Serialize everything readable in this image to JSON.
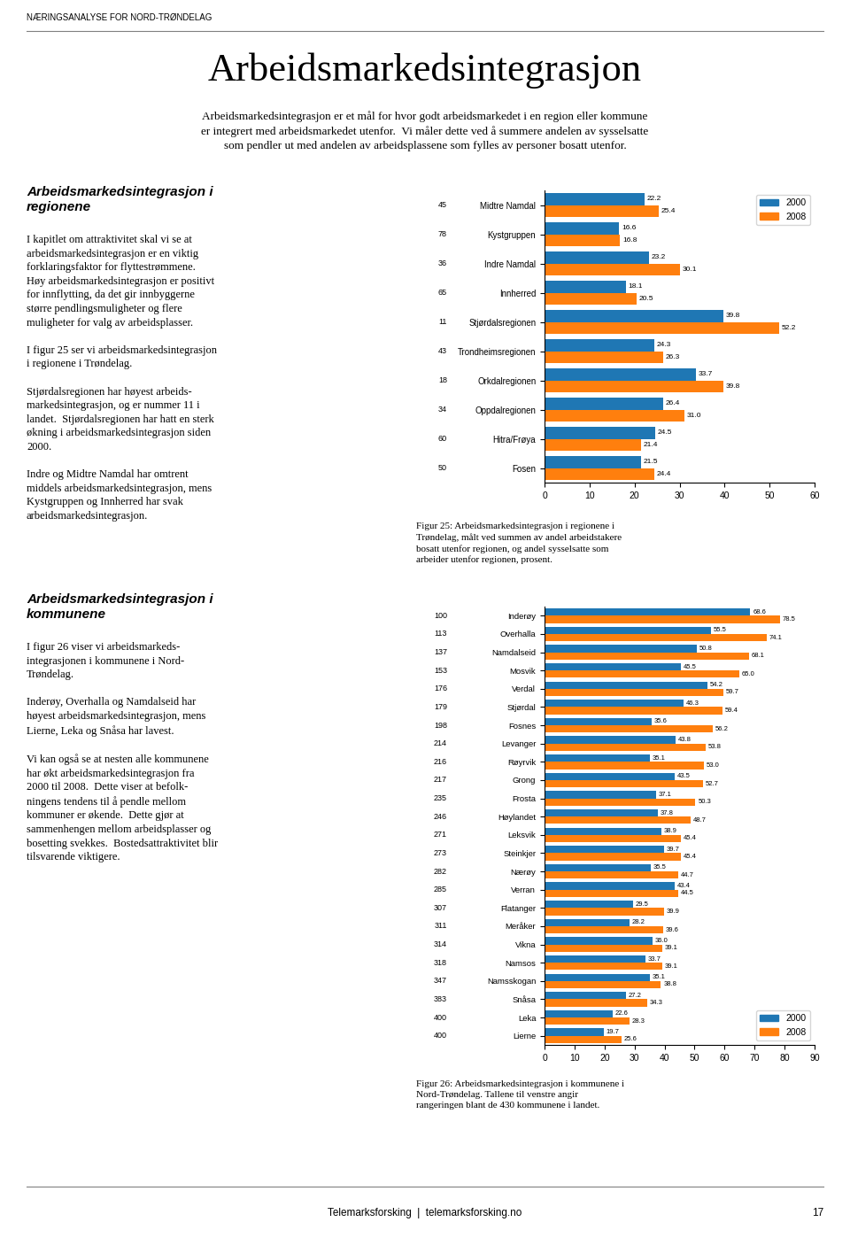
{
  "header": "NÆRINGSANALYSE FOR NORD-TRØNDELAG",
  "title": "Arbeidsmarkedsintegrasjon",
  "subtitle": "Arbeidsmarkedsintegrasjon er et mål for hvor godt arbeidsmarkedet i en region eller kommune\ner integrert med arbeidsmarkedet utenfor.  Vi måler dette ved å summere andelen av sysselsatte\nsom pendler ut med andelen av arbeidsplassene som fylles av personer bosatt utenfor.",
  "sections": [
    {
      "title": "Arbeidsmarkedsintegrasjon i\nregionene",
      "text": "I kapitlet om attraktivitet skal vi se at\narbeidsmarkedsintegrasjon er en viktig\nforklaringsfaktor for flyttestrømmene.\nHøy arbeidsmarkedsintegrasjon er positivt\nfor innflytting, da det gir innbyggerne\nstørre pendlingsmuligheter og flere\nmuligheter for valg av arbeidsplasser.\n\nI figur 25 ser vi arbeidsmarkedsintegrasjon\ni regionene i Trøndelag.\n\nStjørdalsregionen har høyest arbeids-\nmarkedsintegrasjon, og er nummer 11 i\nlandet.  Stjørdalsregionen har hatt en sterk\nøkning i arbeidsmarkedsintegrasjon siden\n2000.\n\nIndre og Midtre Namdal har omtrent\nmiddels arbeidsmarkedsintegrasjon, mens\nKystgruppen og Innherred har svak\narbeidsmarkedsintegrasjon."
    },
    {
      "title": "Arbeidsmarkedsintegrasjon i\nkommunene",
      "text": "I figur 26 viser vi arbeidsmarkeds-\nintegrasjonen i kommunene i Nord-\nTrøndelag.\n\nInderøy, Overhalla og Namdalseid har\nhøyest arbeidsmarkedsintegrasjon, mens\nLierne, Leka og Snåsa har lavest.\n\nVi kan også se at nesten alle kommunene\nhar økt arbeidsmarkedsintegrasjon fra\n2000 til 2008.  Dette viser at befolk-\nningens tendens til å pendle mellom\nkommuner er økende.  Dette gjør at\nsammenhengen mellom arbeidsplasser og\nbosetting svekkes.  Bostedsattraktivitet blir\ntilsvarende viktigere."
    }
  ],
  "footer": "Telemarksforsking  |  telemarksforsking.no",
  "page_number": "17",
  "chart_data": [
    {
      "type": "bar",
      "orientation": "horizontal",
      "title": "Figur 25: Arbeidsmarkedsintegrasjon i regionene i\nTrøndelag, målt ved summen av andel arbeidstakere\nbosatt utenfor regionen, og andel sysselsatte som\narbeider utenfor regionen, prosent.",
      "categories": [
        "Midtre Namdal",
        "Kystgruppen",
        "Indre Namdal",
        "Innherred",
        "Stjørdalsregionen",
        "Trondheimsregionen",
        "Orkdalregionen",
        "Oppdalregionen",
        "Hitra/Frøya",
        "Fosen"
      ],
      "ranks": [
        "45",
        "78",
        "36",
        "65",
        "11",
        "43",
        "18",
        "34",
        "60",
        "50"
      ],
      "series": [
        {
          "name": "2000",
          "values": [
            22.2,
            16.6,
            23.2,
            18.1,
            39.8,
            24.3,
            33.7,
            26.4,
            24.5,
            21.5
          ],
          "value_labels": [
            "22.2",
            "16.6",
            "23.2",
            "18.1",
            "39.8",
            "24.3",
            "33.7",
            "26.4",
            "24.5",
            "21.5"
          ]
        },
        {
          "name": "2008",
          "values": [
            25.4,
            16.8,
            30.1,
            20.5,
            52.2,
            26.3,
            39.8,
            31.0,
            21.4,
            24.4
          ],
          "value_labels": [
            "25.4",
            "16.8",
            "30.1",
            "20.5",
            "52.2",
            "26.3",
            "39.8",
            "31.0",
            "21.4",
            "24.4"
          ]
        }
      ],
      "xlim": [
        0,
        60
      ],
      "xticks": [
        0,
        10,
        20,
        30,
        40,
        50,
        60
      ],
      "grid": false,
      "legend": "upper right",
      "data_labels": true
    },
    {
      "type": "bar",
      "orientation": "horizontal",
      "title": "Figur 26: Arbeidsmarkedsintegrasjon i kommunene i\nNord-Trøndelag. Tallene til venstre angir\nrangeringen blant de 430 kommunene i landet.",
      "categories": [
        "Inderøy",
        "Overhalla",
        "Namdalseid",
        "Mosvik",
        "Verdal",
        "Stjørdal",
        "Fosnes",
        "Levanger",
        "Røyrvik",
        "Grong",
        "Frosta",
        "Høylandet",
        "Leksvik",
        "Steinkjer",
        "Nærøy",
        "Verran",
        "Flatanger",
        "Meråker",
        "Vikna",
        "Namsos",
        "Namsskogan",
        "Snåsa",
        "Leka",
        "Lierne"
      ],
      "ranks": [
        "100",
        "113",
        "137",
        "153",
        "176",
        "179",
        "198",
        "214",
        "216",
        "217",
        "235",
        "246",
        "271",
        "273",
        "282",
        "285",
        "307",
        "311",
        "314",
        "318",
        "347",
        "383",
        "400",
        "400"
      ],
      "series": [
        {
          "name": "2000",
          "values": [
            68.6,
            55.5,
            50.8,
            45.5,
            54.2,
            46.3,
            35.6,
            43.8,
            35.1,
            43.5,
            37.1,
            37.8,
            38.9,
            39.7,
            35.5,
            43.4,
            29.5,
            28.2,
            36.0,
            33.7,
            35.1,
            27.2,
            22.6,
            19.7
          ],
          "value_labels": [
            "68.6",
            "55.5",
            "50.8",
            "45.5",
            "54.2",
            "46.3",
            "35.6",
            "43.8",
            "35.1",
            "43.5",
            "37.1",
            "37.8",
            "38.9",
            "39.7",
            "35.5",
            "43.4",
            "29.5",
            "28.2",
            "36.0",
            "33.7",
            "35.1",
            "27.2",
            "22.6",
            "19.7"
          ]
        },
        {
          "name": "2008",
          "values": [
            78.5,
            74.1,
            68.1,
            65.0,
            59.7,
            59.4,
            56.2,
            53.8,
            53.0,
            52.7,
            50.3,
            48.7,
            45.4,
            45.4,
            44.7,
            44.5,
            39.9,
            39.6,
            39.1,
            39.1,
            38.8,
            34.3,
            28.3,
            25.6
          ],
          "value_labels": [
            "78.5",
            "74.1",
            "68.1",
            "65.0",
            "59.7",
            "59.4",
            "56.2",
            "53.8",
            "53.0",
            "52.7",
            "50.3",
            "48.7",
            "45.4",
            "45.4",
            "44.7",
            "44.5",
            "39.9",
            "39.6",
            "39.1",
            "39.1",
            "38.8",
            "34.3",
            "28.3",
            "25.6"
          ]
        }
      ],
      "xlim": [
        0,
        90
      ],
      "xticks": [
        0,
        10,
        20,
        30,
        40,
        50,
        60,
        70,
        80,
        90
      ],
      "grid": false,
      "legend": "lower right",
      "data_labels": true
    }
  ]
}
